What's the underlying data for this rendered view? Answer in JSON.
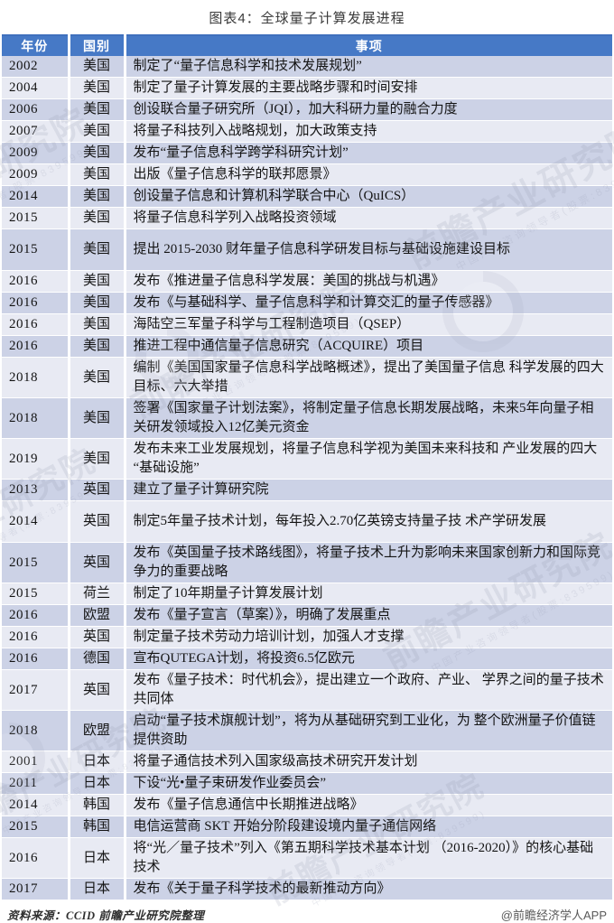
{
  "title": "图表4：全球量子计算发展进程",
  "colors": {
    "header_bg": "#4679C6",
    "header_text": "#FFFFFF",
    "row_dark": "#CCD2E6",
    "row_light": "#E8EAF3",
    "credit_text": "#595959"
  },
  "watermark": {
    "brand_text": "前瞻产业研究院",
    "tagline": "中国产业咨询领导者(股票:839599)"
  },
  "footer": {
    "source": "资料来源：CCID 前瞻产业研究院整理",
    "credit": "@前瞻经济学人APP"
  },
  "chart_data": {
    "type": "table",
    "title": "图表4：全球量子计算发展进程",
    "columns": [
      "年份",
      "国别",
      "事项"
    ],
    "rows": [
      {
        "year": "2002",
        "country": "美国",
        "event": "制定了“量子信息科学和技术发展规划”"
      },
      {
        "year": "2004",
        "country": "美国",
        "event": "制定了量子计算发展的主要战略步骤和时间安排"
      },
      {
        "year": "2006",
        "country": "美国",
        "event": "创设联合量子研究所（JQI），加大科研力量的融合力度"
      },
      {
        "year": "2007",
        "country": "美国",
        "event": "将量子科技列入战略规划，加大政策支持"
      },
      {
        "year": "2009",
        "country": "美国",
        "event": "发布“量子信息科学跨学科研究计划”"
      },
      {
        "year": "2009",
        "country": "美国",
        "event": "出版《量子信息科学的联邦愿景》"
      },
      {
        "year": "2014",
        "country": "美国",
        "event": "创设量子信息和计算机科学联合中心（QuICS）"
      },
      {
        "year": "2015",
        "country": "美国",
        "event": "将量子信息科学列入战略投资领域"
      },
      {
        "year": "2015",
        "country": "美国",
        "event": "提出 2015-2030 财年量子信息科学研发目标与基础设施建设目标"
      },
      {
        "year": "2016",
        "country": "美国",
        "event": "发布《推进量子信息科学发展：美国的挑战与机遇》"
      },
      {
        "year": "2016",
        "country": "美国",
        "event": "发布《与基础科学、量子信息科学和计算交汇的量子传感器》"
      },
      {
        "year": "2016",
        "country": "美国",
        "event": "海陆空三军量子科学与工程制造项目（QSEP）"
      },
      {
        "year": "2016",
        "country": "美国",
        "event": "推进工程中通信量子信息研究（ACQUIRE）项目"
      },
      {
        "year": "2018",
        "country": "美国",
        "event": "编制《美国国家量子信息科学战略概述》，提出了美国量子信息 科学发展的四大目标、六大举措"
      },
      {
        "year": "2018",
        "country": "美国",
        "event": "签署《国家量子计划法案》，将制定量子信息长期发展战略，未来5年向量子相关研发领域投入12亿美元资金"
      },
      {
        "year": "2019",
        "country": "美国",
        "event": "发布未来工业发展规划，将量子信息科学视为美国未来科技和 产业发展的四大“基础设施”"
      },
      {
        "year": "2013",
        "country": "英国",
        "event": "建立了量子计算研究院"
      },
      {
        "year": "2014",
        "country": "英国",
        "event": "制定5年量子技术计划，每年投入2.70亿英镑支持量子技 术产学研发展"
      },
      {
        "year": "2015",
        "country": "英国",
        "event": "发布《英国量子技术路线图》，将量子技术上升为影响未来国家创新力和国际竞争力的重要战略"
      },
      {
        "year": "2015",
        "country": "荷兰",
        "event": "制定了10年期量子计算发展计划"
      },
      {
        "year": "2016",
        "country": "欧盟",
        "event": "发布《量子宣言（草案）》，明确了发展重点"
      },
      {
        "year": "2016",
        "country": "英国",
        "event": "制定量子技术劳动力培训计划，加强人才支撑"
      },
      {
        "year": "2016",
        "country": "德国",
        "event": "宣布QUTEGA计划，将投资6.5亿欧元"
      },
      {
        "year": "2017",
        "country": "英国",
        "event": "发布《量子技术：时代机会》，提出建立一个政府、产业、 学界之间的量子技术共同体"
      },
      {
        "year": "2018",
        "country": "欧盟",
        "event": "启动“量子技术旗舰计划”，将为从基础研究到工业化，为 整个欧洲量子价值链提供资助"
      },
      {
        "year": "2001",
        "country": "日本",
        "event": "将量子通信技术列入国家级高技术研究开发计划"
      },
      {
        "year": "2011",
        "country": "日本",
        "event": "下设“光•量子束研发作业委员会”"
      },
      {
        "year": "2014",
        "country": "韩国",
        "event": "发布《量子信息通信中长期推进战略》"
      },
      {
        "year": "2015",
        "country": "韩国",
        "event": "电信运营商 SKT 开始分阶段建设境内量子通信网络"
      },
      {
        "year": "2016",
        "country": "日本",
        "event": "将“光／量子技术”列入《第五期科学技术基本计划 （2016-2020）》的核心基础技术"
      },
      {
        "year": "2017",
        "country": "日本",
        "event": "发布《关于量子科学技术的最新推动方向》"
      }
    ],
    "source": "资料来源：CCID 前瞻产业研究院整理",
    "credit": "@前瞻经济学人APP"
  }
}
